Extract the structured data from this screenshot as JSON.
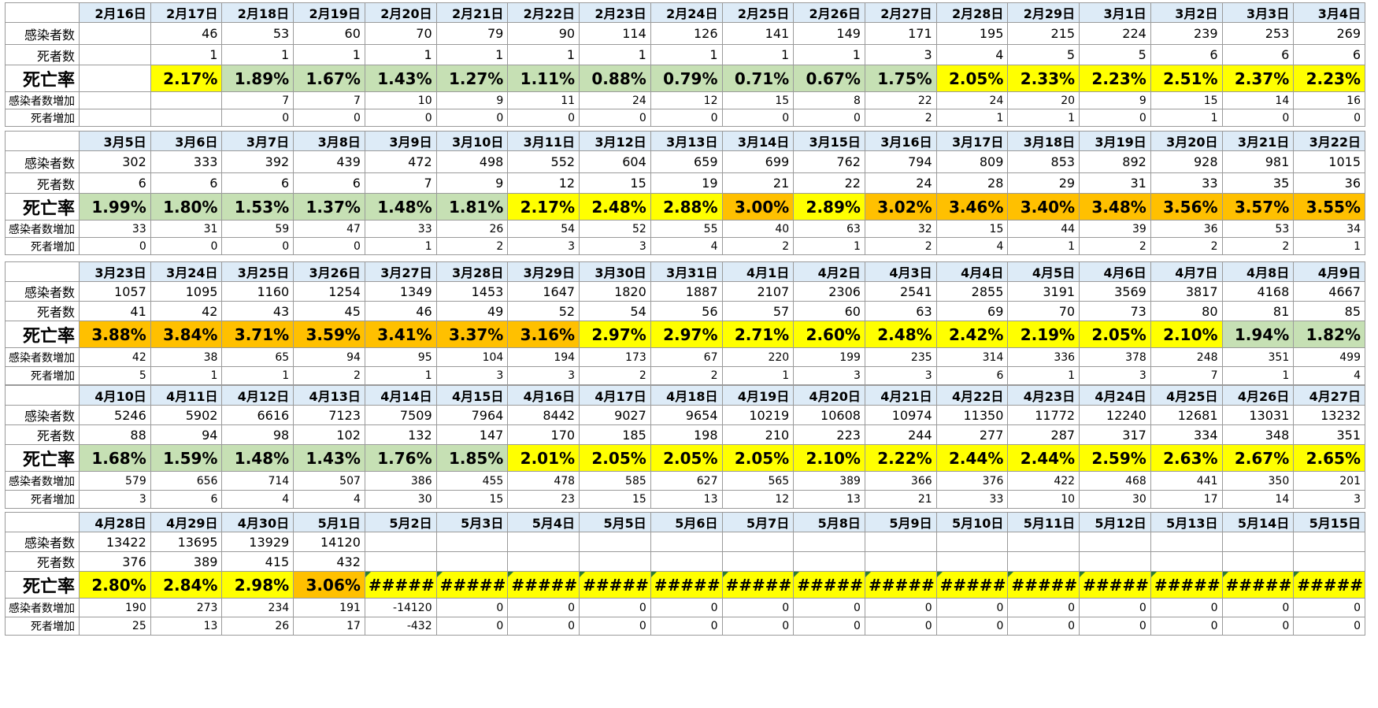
{
  "row_labels": {
    "cases": "感染者数",
    "deaths": "死者数",
    "rate": "死亡率",
    "cases_inc": "感染者数増加",
    "deaths_inc": "死者増加"
  },
  "colors": {
    "yellow": "#ffff00",
    "green": "#c6e0b4",
    "orange": "#ffc000",
    "header": "#ddebf7"
  },
  "blocks": [
    {
      "dates": [
        "2月16日",
        "2月17日",
        "2月18日",
        "2月19日",
        "2月20日",
        "2月21日",
        "2月22日",
        "2月23日",
        "2月24日",
        "2月25日",
        "2月26日",
        "2月27日",
        "2月28日",
        "2月29日",
        "3月1日",
        "3月2日",
        "3月3日",
        "3月4日"
      ],
      "cases": [
        "",
        "46",
        "53",
        "60",
        "70",
        "79",
        "90",
        "114",
        "126",
        "141",
        "149",
        "171",
        "195",
        "215",
        "224",
        "239",
        "253",
        "269"
      ],
      "deaths": [
        "",
        "1",
        "1",
        "1",
        "1",
        "1",
        "1",
        "1",
        "1",
        "1",
        "1",
        "3",
        "4",
        "5",
        "5",
        "6",
        "6",
        "6"
      ],
      "rate": [
        "",
        "2.17%",
        "1.89%",
        "1.67%",
        "1.43%",
        "1.27%",
        "1.11%",
        "0.88%",
        "0.79%",
        "0.71%",
        "0.67%",
        "1.75%",
        "2.05%",
        "2.33%",
        "2.23%",
        "2.51%",
        "2.37%",
        "2.23%"
      ],
      "rate_color": [
        "none",
        "yellow",
        "green",
        "green",
        "green",
        "green",
        "green",
        "green",
        "green",
        "green",
        "green",
        "green",
        "yellow",
        "yellow",
        "yellow",
        "yellow",
        "yellow",
        "yellow"
      ],
      "cases_inc": [
        "",
        "",
        "7",
        "7",
        "10",
        "9",
        "11",
        "24",
        "12",
        "15",
        "8",
        "22",
        "24",
        "20",
        "9",
        "15",
        "14",
        "16"
      ],
      "deaths_inc": [
        "",
        "",
        "0",
        "0",
        "0",
        "0",
        "0",
        "0",
        "0",
        "0",
        "0",
        "2",
        "1",
        "1",
        "0",
        "1",
        "0",
        "0"
      ]
    },
    {
      "dates": [
        "3月5日",
        "3月6日",
        "3月7日",
        "3月8日",
        "3月9日",
        "3月10日",
        "3月11日",
        "3月12日",
        "3月13日",
        "3月14日",
        "3月15日",
        "3月16日",
        "3月17日",
        "3月18日",
        "3月19日",
        "3月20日",
        "3月21日",
        "3月22日"
      ],
      "cases": [
        "302",
        "333",
        "392",
        "439",
        "472",
        "498",
        "552",
        "604",
        "659",
        "699",
        "762",
        "794",
        "809",
        "853",
        "892",
        "928",
        "981",
        "1015"
      ],
      "deaths": [
        "6",
        "6",
        "6",
        "6",
        "7",
        "9",
        "12",
        "15",
        "19",
        "21",
        "22",
        "24",
        "28",
        "29",
        "31",
        "33",
        "35",
        "36"
      ],
      "rate": [
        "1.99%",
        "1.80%",
        "1.53%",
        "1.37%",
        "1.48%",
        "1.81%",
        "2.17%",
        "2.48%",
        "2.88%",
        "3.00%",
        "2.89%",
        "3.02%",
        "3.46%",
        "3.40%",
        "3.48%",
        "3.56%",
        "3.57%",
        "3.55%"
      ],
      "rate_color": [
        "green",
        "green",
        "green",
        "green",
        "green",
        "green",
        "yellow",
        "yellow",
        "yellow",
        "orange",
        "yellow",
        "orange",
        "orange",
        "orange",
        "orange",
        "orange",
        "orange",
        "orange"
      ],
      "cases_inc": [
        "33",
        "31",
        "59",
        "47",
        "33",
        "26",
        "54",
        "52",
        "55",
        "40",
        "63",
        "32",
        "15",
        "44",
        "39",
        "36",
        "53",
        "34"
      ],
      "deaths_inc": [
        "0",
        "0",
        "0",
        "0",
        "1",
        "2",
        "3",
        "3",
        "4",
        "2",
        "1",
        "2",
        "4",
        "1",
        "2",
        "2",
        "2",
        "1"
      ]
    },
    {
      "dates": [
        "3月23日",
        "3月24日",
        "3月25日",
        "3月26日",
        "3月27日",
        "3月28日",
        "3月29日",
        "3月30日",
        "3月31日",
        "4月1日",
        "4月2日",
        "4月3日",
        "4月4日",
        "4月5日",
        "4月6日",
        "4月7日",
        "4月8日",
        "4月9日"
      ],
      "cases": [
        "1057",
        "1095",
        "1160",
        "1254",
        "1349",
        "1453",
        "1647",
        "1820",
        "1887",
        "2107",
        "2306",
        "2541",
        "2855",
        "3191",
        "3569",
        "3817",
        "4168",
        "4667"
      ],
      "deaths": [
        "41",
        "42",
        "43",
        "45",
        "46",
        "49",
        "52",
        "54",
        "56",
        "57",
        "60",
        "63",
        "69",
        "70",
        "73",
        "80",
        "81",
        "85"
      ],
      "rate": [
        "3.88%",
        "3.84%",
        "3.71%",
        "3.59%",
        "3.41%",
        "3.37%",
        "3.16%",
        "2.97%",
        "2.97%",
        "2.71%",
        "2.60%",
        "2.48%",
        "2.42%",
        "2.19%",
        "2.05%",
        "2.10%",
        "1.94%",
        "1.82%"
      ],
      "rate_color": [
        "orange",
        "orange",
        "orange",
        "orange",
        "orange",
        "orange",
        "orange",
        "yellow",
        "yellow",
        "yellow",
        "yellow",
        "yellow",
        "yellow",
        "yellow",
        "yellow",
        "yellow",
        "green",
        "green"
      ],
      "cases_inc": [
        "42",
        "38",
        "65",
        "94",
        "95",
        "104",
        "194",
        "173",
        "67",
        "220",
        "199",
        "235",
        "314",
        "336",
        "378",
        "248",
        "351",
        "499"
      ],
      "deaths_inc": [
        "5",
        "1",
        "1",
        "2",
        "1",
        "3",
        "3",
        "2",
        "2",
        "1",
        "3",
        "3",
        "6",
        "1",
        "3",
        "7",
        "1",
        "4"
      ]
    },
    {
      "dates": [
        "4月10日",
        "4月11日",
        "4月12日",
        "4月13日",
        "4月14日",
        "4月15日",
        "4月16日",
        "4月17日",
        "4月18日",
        "4月19日",
        "4月20日",
        "4月21日",
        "4月22日",
        "4月23日",
        "4月24日",
        "4月25日",
        "4月26日",
        "4月27日"
      ],
      "cases": [
        "5246",
        "5902",
        "6616",
        "7123",
        "7509",
        "7964",
        "8442",
        "9027",
        "9654",
        "10219",
        "10608",
        "10974",
        "11350",
        "11772",
        "12240",
        "12681",
        "13031",
        "13232"
      ],
      "deaths": [
        "88",
        "94",
        "98",
        "102",
        "132",
        "147",
        "170",
        "185",
        "198",
        "210",
        "223",
        "244",
        "277",
        "287",
        "317",
        "334",
        "348",
        "351"
      ],
      "rate": [
        "1.68%",
        "1.59%",
        "1.48%",
        "1.43%",
        "1.76%",
        "1.85%",
        "2.01%",
        "2.05%",
        "2.05%",
        "2.05%",
        "2.10%",
        "2.22%",
        "2.44%",
        "2.44%",
        "2.59%",
        "2.63%",
        "2.67%",
        "2.65%"
      ],
      "rate_color": [
        "green",
        "green",
        "green",
        "green",
        "green",
        "green",
        "yellow",
        "yellow",
        "yellow",
        "yellow",
        "yellow",
        "yellow",
        "yellow",
        "yellow",
        "yellow",
        "yellow",
        "yellow",
        "yellow"
      ],
      "cases_inc": [
        "579",
        "656",
        "714",
        "507",
        "386",
        "455",
        "478",
        "585",
        "627",
        "565",
        "389",
        "366",
        "376",
        "422",
        "468",
        "441",
        "350",
        "201"
      ],
      "deaths_inc": [
        "3",
        "6",
        "4",
        "4",
        "30",
        "15",
        "23",
        "15",
        "13",
        "12",
        "13",
        "21",
        "33",
        "10",
        "30",
        "17",
        "14",
        "3"
      ]
    },
    {
      "dates": [
        "4月28日",
        "4月29日",
        "4月30日",
        "5月1日",
        "5月2日",
        "5月3日",
        "5月4日",
        "5月5日",
        "5月6日",
        "5月7日",
        "5月8日",
        "5月9日",
        "5月10日",
        "5月11日",
        "5月12日",
        "5月13日",
        "5月14日",
        "5月15日"
      ],
      "cases": [
        "13422",
        "13695",
        "13929",
        "14120",
        "",
        "",
        "",
        "",
        "",
        "",
        "",
        "",
        "",
        "",
        "",
        "",
        "",
        ""
      ],
      "deaths": [
        "376",
        "389",
        "415",
        "432",
        "",
        "",
        "",
        "",
        "",
        "",
        "",
        "",
        "",
        "",
        "",
        "",
        "",
        ""
      ],
      "rate": [
        "2.80%",
        "2.84%",
        "2.98%",
        "3.06%",
        "#####",
        "#####",
        "#####",
        "#####",
        "#####",
        "#####",
        "#####",
        "#####",
        "#####",
        "#####",
        "#####",
        "#####",
        "#####",
        "#####"
      ],
      "rate_color": [
        "yellow",
        "yellow",
        "yellow",
        "orange",
        "err",
        "err",
        "err",
        "err",
        "err",
        "err",
        "err",
        "err",
        "err",
        "err",
        "err",
        "err",
        "err",
        "err"
      ],
      "cases_inc": [
        "190",
        "273",
        "234",
        "191",
        "-14120",
        "0",
        "0",
        "0",
        "0",
        "0",
        "0",
        "0",
        "0",
        "0",
        "0",
        "0",
        "0",
        "0"
      ],
      "deaths_inc": [
        "25",
        "13",
        "26",
        "17",
        "-432",
        "0",
        "0",
        "0",
        "0",
        "0",
        "0",
        "0",
        "0",
        "0",
        "0",
        "0",
        "0",
        "0"
      ]
    }
  ]
}
